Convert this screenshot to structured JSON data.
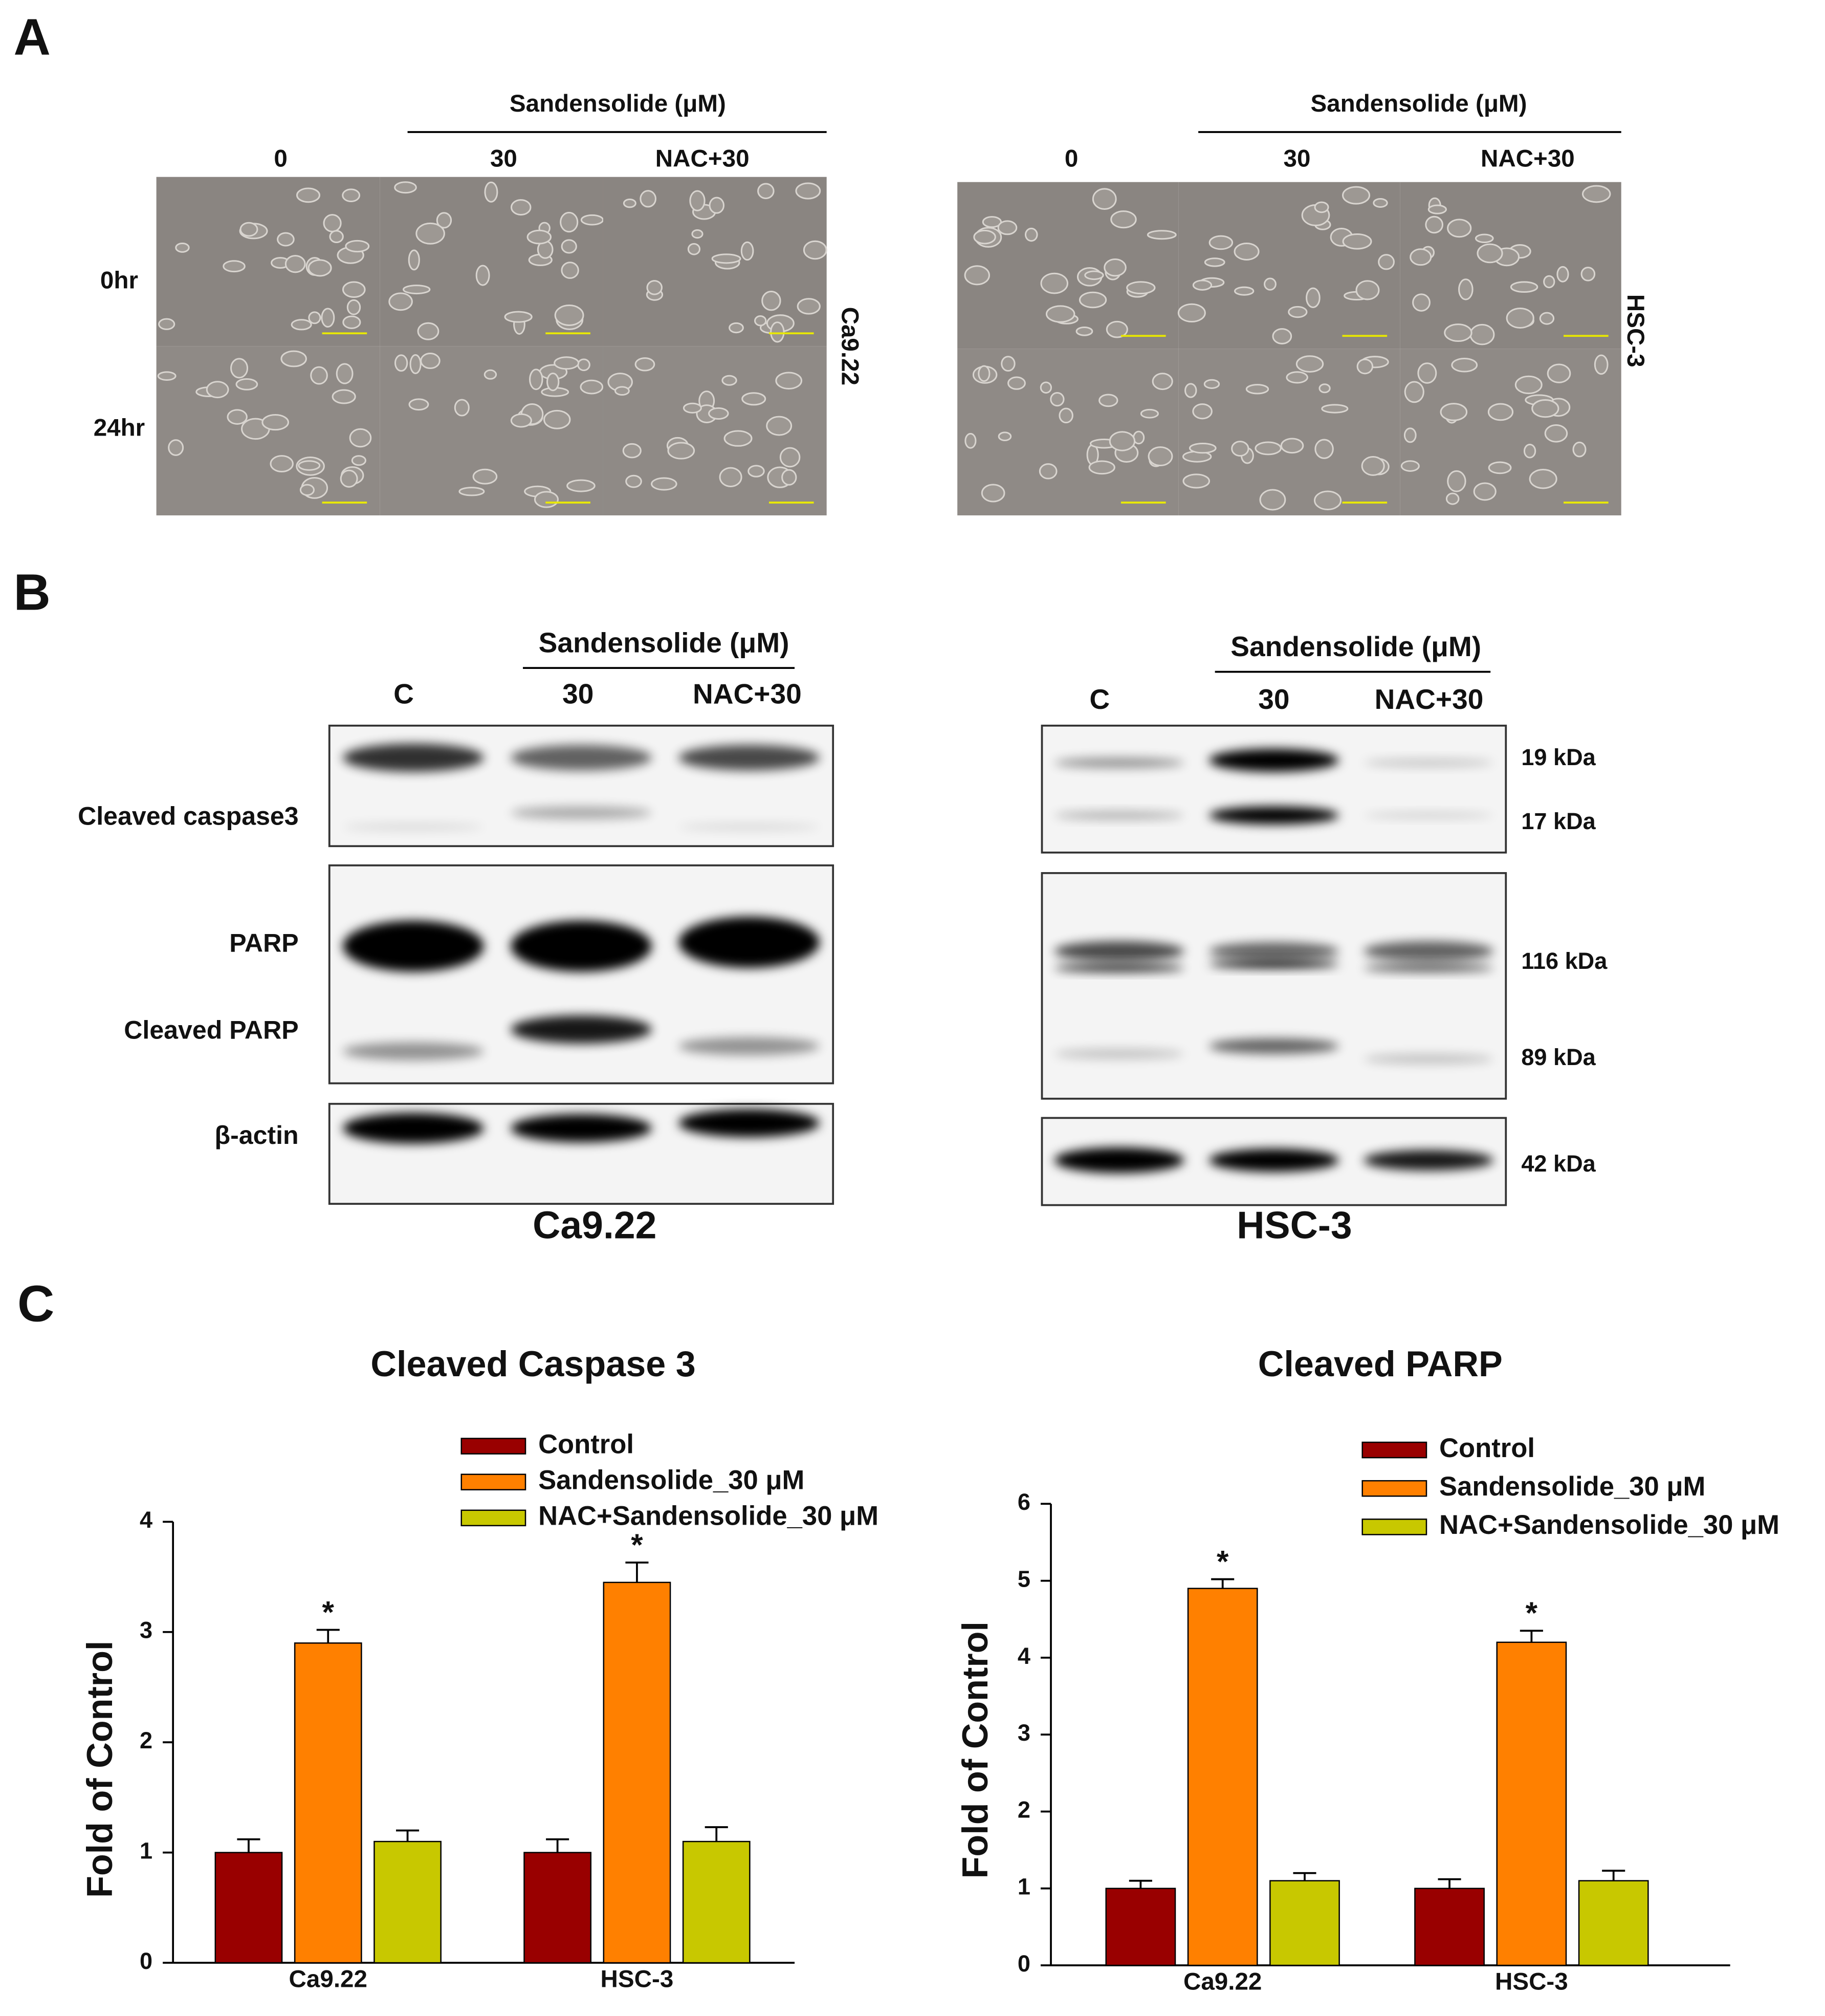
{
  "panel_a": {
    "label": "A",
    "groups": [
      {
        "treatment_title": "Sandensolide (μM)",
        "columns": [
          "0",
          "30",
          "NAC+30"
        ],
        "rows": [
          "0hr",
          "24hr"
        ],
        "cell_line": "Ca9.22"
      },
      {
        "treatment_title": "Sandensolide (μM)",
        "columns": [
          "0",
          "30",
          "NAC+30"
        ],
        "cell_line": "HSC-3"
      }
    ]
  },
  "panel_b": {
    "label": "B",
    "blots": [
      {
        "treatment_title": "Sandensolide (μM)",
        "columns": [
          "C",
          "30",
          "NAC+30"
        ],
        "proteins": [
          "Cleaved caspase3",
          "PARP",
          "Cleaved PARP",
          "β-actin"
        ],
        "cell_line": "Ca9.22"
      },
      {
        "treatment_title": "Sandensolide (μM)",
        "columns": [
          "C",
          "30",
          "NAC+30"
        ],
        "weights": [
          "19 kDa",
          "17 kDa",
          "116 kDa",
          "89 kDa",
          "42 kDa"
        ],
        "cell_line": "HSC-3"
      }
    ]
  },
  "panel_c": {
    "label": "C"
  },
  "chart_data": [
    {
      "type": "bar",
      "title": "Cleaved Caspase 3",
      "y_label": "Fold of Control",
      "categories": [
        "Ca9.22",
        "HSC-3"
      ],
      "series": [
        {
          "name": "Control",
          "color": "#990000",
          "values": [
            1,
            1
          ],
          "errors": [
            0.12,
            0.12
          ]
        },
        {
          "name": "Sandensolide_30 μM",
          "color": "#ff8000",
          "values": [
            2.9,
            3.45
          ],
          "errors": [
            0.12,
            0.18
          ],
          "annotations": [
            "*",
            "*"
          ]
        },
        {
          "name": "NAC+Sandensolide_30 μM",
          "color": "#c8c800",
          "values": [
            1.1,
            1.1
          ],
          "errors": [
            0.1,
            0.13
          ]
        }
      ],
      "ylim": [
        0,
        4
      ],
      "yticks": [
        0,
        1,
        2,
        3,
        4
      ]
    },
    {
      "type": "bar",
      "title": "Cleaved PARP",
      "y_label": "Fold of Control",
      "categories": [
        "Ca9.22",
        "HSC-3"
      ],
      "series": [
        {
          "name": "Control",
          "color": "#990000",
          "values": [
            1,
            1
          ],
          "errors": [
            0.1,
            0.12
          ]
        },
        {
          "name": "Sandensolide_30 μM",
          "color": "#ff8000",
          "values": [
            4.9,
            4.2
          ],
          "errors": [
            0.12,
            0.15
          ],
          "annotations": [
            "*",
            "*"
          ]
        },
        {
          "name": "NAC+Sandensolide_30 μM",
          "color": "#c8c800",
          "values": [
            1.1,
            1.1
          ],
          "errors": [
            0.1,
            0.13
          ]
        }
      ],
      "ylim": [
        0,
        6
      ],
      "yticks": [
        0,
        1,
        2,
        3,
        4,
        5,
        6
      ]
    }
  ]
}
